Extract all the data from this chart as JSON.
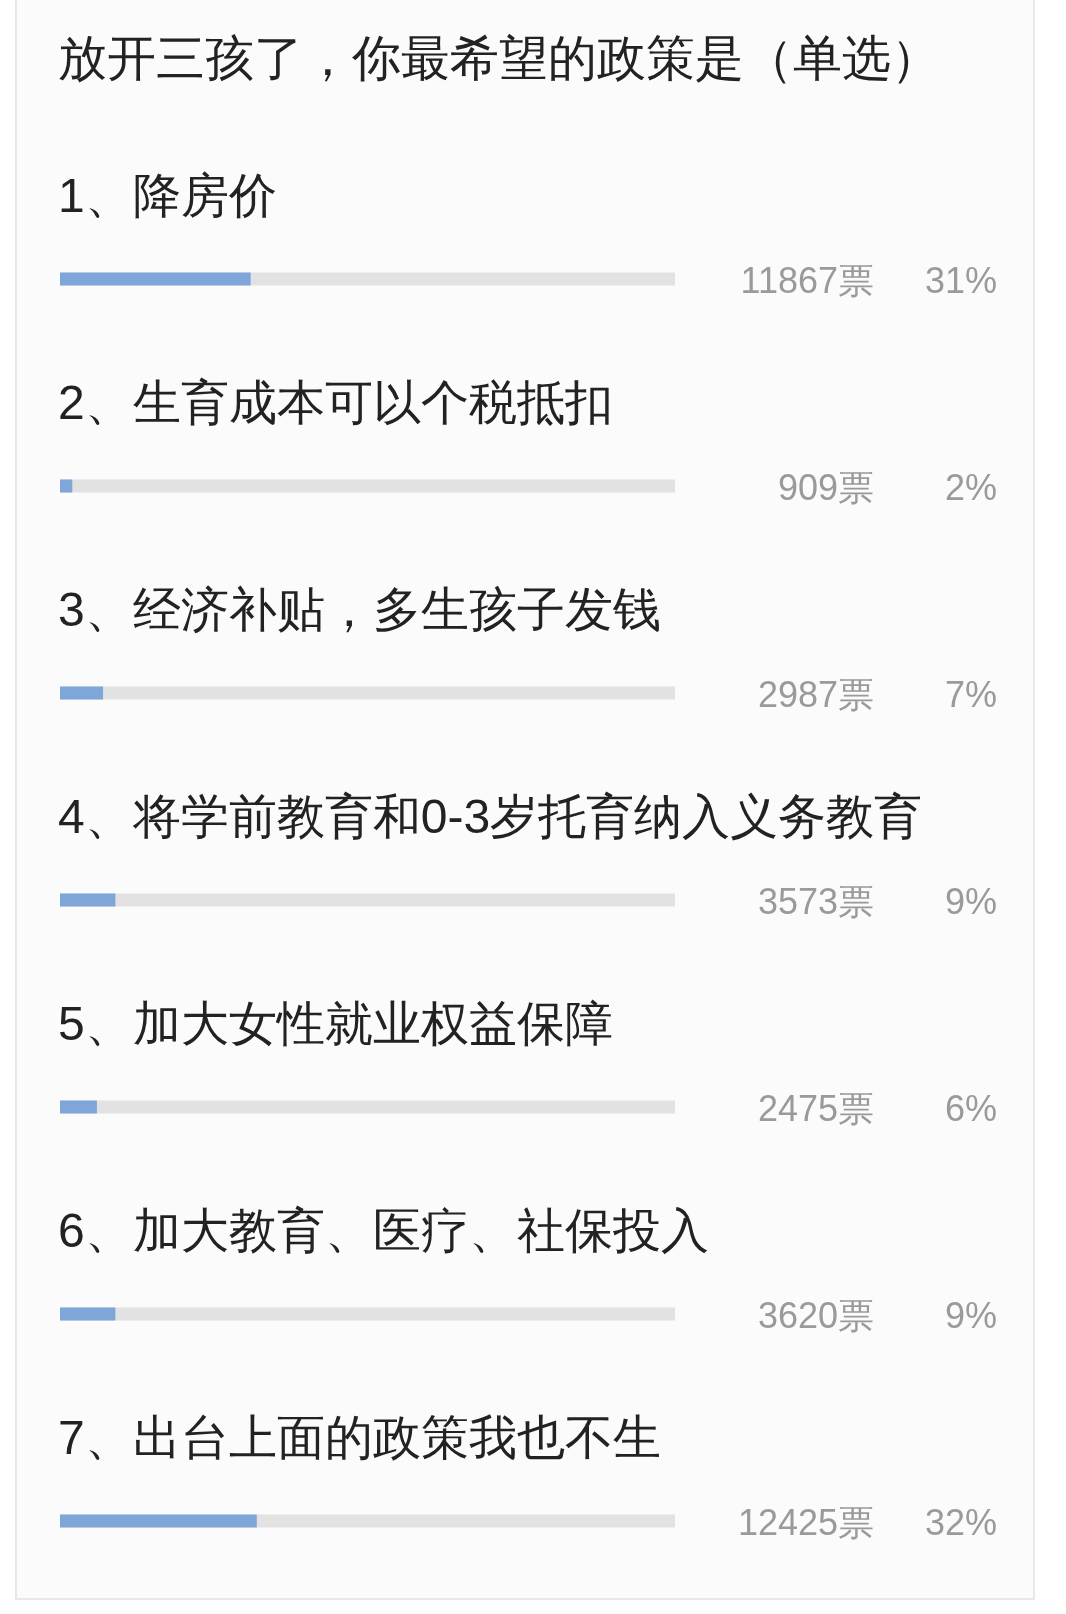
{
  "chart_data": {
    "type": "bar",
    "orientation": "horizontal",
    "title": "放开三孩了，你最希望的政策是（单选）",
    "categories": [
      "1、降房价",
      "2、生育成本可以个税抵扣",
      "3、经济补贴，多生孩子发钱",
      "4、将学前教育和0-3岁托育纳入义务教育",
      "5、加大女性就业权益保障",
      "6、加大教育、医疗、社保投入",
      "7、出台上面的政策我也不生"
    ],
    "values": [
      31,
      2,
      7,
      9,
      6,
      9,
      32
    ],
    "value_labels": [
      "31%",
      "2%",
      "7%",
      "9%",
      "6%",
      "9%",
      "32%"
    ],
    "annotations": [
      "11867票",
      "909票",
      "2987票",
      "3573票",
      "2475票",
      "3620票",
      "12425票"
    ],
    "color": "#7ea6d8",
    "xlim": [
      0,
      100
    ],
    "tick_labels": false
  }
}
